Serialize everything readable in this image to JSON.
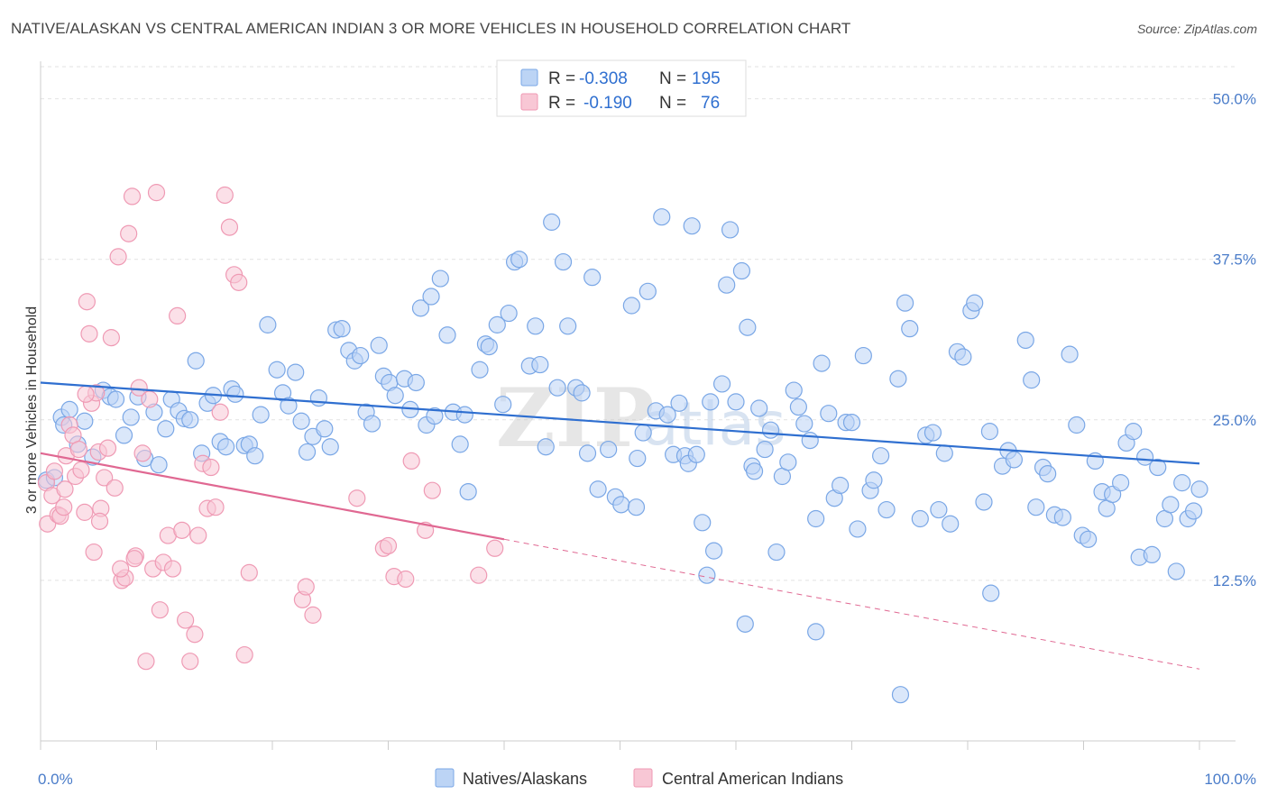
{
  "title": "NATIVE/ALASKAN VS CENTRAL AMERICAN INDIAN 3 OR MORE VEHICLES IN HOUSEHOLD CORRELATION CHART",
  "source": "Source: ZipAtlas.com",
  "watermark": {
    "zip": "ZIP",
    "atlas": "atlas"
  },
  "legend": {
    "rows": [
      {
        "r_label": "R =",
        "r_value": "-0.308",
        "n_label": "N =",
        "n_value": "195",
        "color": "#7aa7e6",
        "fill": "#bcd4f5"
      },
      {
        "r_label": "R =",
        "r_value": "-0.190",
        "n_label": "N =",
        "n_value": "76",
        "color": "#ef9ab4",
        "fill": "#f8c7d5"
      }
    ]
  },
  "bottom_legend": [
    {
      "label": "Natives/Alaskans",
      "color": "#7aa7e6",
      "fill": "#bcd4f5"
    },
    {
      "label": "Central American Indians",
      "color": "#ef9ab4",
      "fill": "#f8c7d5"
    }
  ],
  "chart_data": {
    "type": "scatter",
    "xlabel": "",
    "ylabel": "3 or more Vehicles in Household",
    "xlim": [
      0,
      100
    ],
    "ylim": [
      0,
      52.5
    ],
    "x_tick_labels": [
      "0.0%",
      "100.0%"
    ],
    "y_ticks": [
      12.5,
      25.0,
      37.5,
      50.0
    ],
    "y_tick_labels": [
      "12.5%",
      "25.0%",
      "37.5%",
      "50.0%"
    ],
    "grid": true,
    "legend_position": "top-center",
    "series": [
      {
        "name": "Natives/Alaskans",
        "color": "#7aa7e6",
        "fill": "#bcd4f5",
        "trend": {
          "x": [
            0,
            100
          ],
          "y": [
            27.9,
            21.6
          ],
          "dash": false
        },
        "points": [
          [
            0.5,
            20.3
          ],
          [
            1.2,
            20.5
          ],
          [
            1.8,
            25.2
          ],
          [
            2.0,
            24.6
          ],
          [
            2.5,
            25.8
          ],
          [
            3.2,
            23.1
          ],
          [
            3.8,
            24.9
          ],
          [
            4.5,
            22.1
          ],
          [
            5.4,
            27.3
          ],
          [
            6.0,
            26.8
          ],
          [
            6.5,
            26.6
          ],
          [
            7.2,
            23.8
          ],
          [
            7.8,
            25.2
          ],
          [
            8.4,
            26.8
          ],
          [
            9.0,
            22.0
          ],
          [
            9.8,
            25.6
          ],
          [
            10.2,
            21.5
          ],
          [
            10.8,
            24.3
          ],
          [
            11.3,
            26.6
          ],
          [
            11.9,
            25.7
          ],
          [
            12.4,
            25.1
          ],
          [
            12.9,
            25.0
          ],
          [
            13.4,
            29.6
          ],
          [
            13.9,
            22.4
          ],
          [
            14.4,
            26.3
          ],
          [
            14.9,
            26.9
          ],
          [
            15.5,
            23.3
          ],
          [
            16.0,
            22.9
          ],
          [
            16.5,
            27.4
          ],
          [
            16.8,
            27.0
          ],
          [
            17.6,
            23.0
          ],
          [
            18.0,
            23.1
          ],
          [
            18.5,
            22.2
          ],
          [
            19.0,
            25.4
          ],
          [
            19.6,
            32.4
          ],
          [
            20.4,
            28.9
          ],
          [
            20.9,
            27.1
          ],
          [
            21.4,
            26.1
          ],
          [
            22.0,
            28.7
          ],
          [
            22.5,
            24.9
          ],
          [
            23.0,
            22.5
          ],
          [
            23.5,
            23.7
          ],
          [
            24.0,
            26.7
          ],
          [
            24.5,
            24.3
          ],
          [
            25.0,
            22.9
          ],
          [
            25.5,
            32.0
          ],
          [
            26.0,
            32.1
          ],
          [
            26.6,
            30.4
          ],
          [
            27.1,
            29.6
          ],
          [
            27.6,
            30.0
          ],
          [
            28.1,
            25.6
          ],
          [
            28.6,
            24.7
          ],
          [
            29.2,
            30.8
          ],
          [
            29.6,
            28.4
          ],
          [
            30.1,
            27.9
          ],
          [
            30.6,
            26.9
          ],
          [
            31.4,
            28.2
          ],
          [
            31.9,
            25.8
          ],
          [
            32.4,
            27.9
          ],
          [
            32.8,
            33.7
          ],
          [
            33.3,
            24.6
          ],
          [
            33.7,
            34.6
          ],
          [
            34.0,
            25.3
          ],
          [
            34.5,
            36.0
          ],
          [
            35.1,
            31.6
          ],
          [
            35.6,
            25.6
          ],
          [
            36.2,
            23.1
          ],
          [
            36.6,
            25.4
          ],
          [
            36.9,
            19.4
          ],
          [
            37.9,
            28.9
          ],
          [
            38.4,
            30.9
          ],
          [
            38.7,
            30.7
          ],
          [
            39.4,
            32.4
          ],
          [
            39.9,
            26.2
          ],
          [
            40.4,
            33.3
          ],
          [
            40.9,
            37.3
          ],
          [
            41.3,
            37.5
          ],
          [
            42.2,
            29.2
          ],
          [
            42.7,
            32.3
          ],
          [
            43.1,
            29.3
          ],
          [
            43.6,
            22.9
          ],
          [
            44.1,
            40.4
          ],
          [
            44.6,
            27.5
          ],
          [
            45.1,
            37.3
          ],
          [
            45.5,
            32.3
          ],
          [
            46.2,
            27.5
          ],
          [
            46.7,
            27.1
          ],
          [
            47.2,
            22.4
          ],
          [
            47.6,
            36.1
          ],
          [
            48.1,
            19.6
          ],
          [
            49.0,
            22.7
          ],
          [
            49.6,
            19.0
          ],
          [
            50.1,
            18.4
          ],
          [
            51.0,
            33.9
          ],
          [
            51.4,
            18.2
          ],
          [
            52.0,
            24.0
          ],
          [
            52.4,
            35.0
          ],
          [
            53.1,
            25.7
          ],
          [
            53.6,
            40.8
          ],
          [
            54.1,
            25.4
          ],
          [
            54.6,
            22.3
          ],
          [
            55.1,
            26.3
          ],
          [
            55.6,
            22.2
          ],
          [
            55.9,
            21.6
          ],
          [
            56.2,
            40.1
          ],
          [
            56.6,
            22.3
          ],
          [
            57.1,
            17.0
          ],
          [
            57.5,
            12.9
          ],
          [
            57.8,
            26.4
          ],
          [
            58.1,
            14.8
          ],
          [
            58.8,
            27.8
          ],
          [
            59.5,
            39.8
          ],
          [
            60.0,
            26.4
          ],
          [
            60.5,
            36.6
          ],
          [
            61.0,
            32.2
          ],
          [
            61.4,
            21.4
          ],
          [
            61.6,
            21.0
          ],
          [
            62.0,
            25.9
          ],
          [
            62.5,
            22.7
          ],
          [
            63.0,
            24.2
          ],
          [
            63.5,
            14.7
          ],
          [
            64.0,
            20.6
          ],
          [
            64.5,
            21.7
          ],
          [
            65.0,
            27.3
          ],
          [
            65.4,
            26.0
          ],
          [
            65.9,
            24.7
          ],
          [
            66.4,
            23.4
          ],
          [
            66.9,
            17.3
          ],
          [
            67.4,
            29.4
          ],
          [
            68.0,
            25.5
          ],
          [
            68.5,
            18.9
          ],
          [
            69.0,
            19.9
          ],
          [
            69.5,
            24.8
          ],
          [
            70.0,
            24.8
          ],
          [
            70.5,
            16.5
          ],
          [
            71.0,
            30.0
          ],
          [
            71.6,
            19.5
          ],
          [
            71.9,
            20.3
          ],
          [
            72.5,
            22.2
          ],
          [
            73.0,
            18.0
          ],
          [
            74.0,
            28.2
          ],
          [
            74.6,
            34.1
          ],
          [
            75.0,
            32.1
          ],
          [
            75.9,
            17.3
          ],
          [
            76.4,
            23.8
          ],
          [
            77.0,
            24.0
          ],
          [
            77.5,
            18.0
          ],
          [
            78.0,
            22.4
          ],
          [
            78.5,
            16.9
          ],
          [
            79.1,
            30.3
          ],
          [
            79.6,
            29.9
          ],
          [
            80.3,
            33.5
          ],
          [
            80.6,
            34.1
          ],
          [
            81.4,
            18.6
          ],
          [
            81.9,
            24.1
          ],
          [
            82.0,
            11.5
          ],
          [
            83.0,
            21.4
          ],
          [
            83.5,
            22.6
          ],
          [
            84.0,
            21.9
          ],
          [
            85.0,
            31.2
          ],
          [
            85.5,
            28.1
          ],
          [
            85.9,
            18.2
          ],
          [
            86.5,
            21.3
          ],
          [
            86.9,
            20.8
          ],
          [
            87.5,
            17.6
          ],
          [
            88.2,
            17.4
          ],
          [
            88.8,
            30.1
          ],
          [
            89.4,
            24.6
          ],
          [
            89.9,
            16.0
          ],
          [
            90.4,
            15.7
          ],
          [
            91.0,
            21.8
          ],
          [
            91.6,
            19.4
          ],
          [
            92.0,
            18.1
          ],
          [
            92.5,
            19.2
          ],
          [
            93.2,
            20.1
          ],
          [
            93.7,
            23.2
          ],
          [
            94.3,
            24.1
          ],
          [
            94.8,
            14.3
          ],
          [
            95.3,
            22.1
          ],
          [
            95.9,
            14.5
          ],
          [
            96.4,
            21.3
          ],
          [
            97.0,
            17.3
          ],
          [
            97.5,
            18.4
          ],
          [
            98.0,
            13.2
          ],
          [
            98.5,
            20.1
          ],
          [
            99.0,
            17.3
          ],
          [
            99.5,
            17.9
          ],
          [
            100.0,
            19.6
          ],
          [
            59.2,
            35.5
          ],
          [
            51.5,
            22.0
          ],
          [
            66.9,
            8.5
          ],
          [
            74.2,
            3.6
          ],
          [
            60.8,
            9.1
          ]
        ]
      },
      {
        "name": "Central American Indians",
        "color": "#ef9ab4",
        "fill": "#f8c7d5",
        "trend": {
          "x": [
            0,
            40
          ],
          "y": [
            22.4,
            15.7
          ],
          "dash": false
        },
        "trend_extension": {
          "x": [
            40,
            100
          ],
          "y": [
            15.7,
            5.6
          ],
          "dash": true
        },
        "points": [
          [
            0.5,
            20.1
          ],
          [
            0.6,
            16.9
          ],
          [
            1.0,
            19.1
          ],
          [
            1.2,
            21.0
          ],
          [
            1.5,
            17.6
          ],
          [
            1.7,
            17.5
          ],
          [
            2.0,
            18.2
          ],
          [
            2.2,
            22.2
          ],
          [
            2.5,
            24.6
          ],
          [
            2.8,
            23.8
          ],
          [
            3.0,
            20.6
          ],
          [
            3.3,
            22.7
          ],
          [
            3.5,
            21.1
          ],
          [
            3.8,
            17.8
          ],
          [
            4.0,
            34.2
          ],
          [
            4.2,
            31.7
          ],
          [
            4.4,
            26.3
          ],
          [
            4.6,
            14.7
          ],
          [
            4.8,
            27.1
          ],
          [
            5.0,
            22.5
          ],
          [
            5.2,
            18.1
          ],
          [
            5.5,
            20.5
          ],
          [
            5.8,
            22.8
          ],
          [
            6.1,
            31.4
          ],
          [
            6.4,
            19.7
          ],
          [
            6.7,
            37.7
          ],
          [
            7.0,
            12.5
          ],
          [
            7.3,
            12.7
          ],
          [
            7.6,
            39.5
          ],
          [
            7.9,
            42.4
          ],
          [
            8.2,
            14.4
          ],
          [
            8.5,
            27.5
          ],
          [
            8.8,
            22.4
          ],
          [
            9.1,
            6.2
          ],
          [
            9.4,
            26.6
          ],
          [
            9.7,
            13.4
          ],
          [
            10.0,
            42.7
          ],
          [
            10.3,
            10.2
          ],
          [
            10.6,
            13.9
          ],
          [
            11.0,
            16.0
          ],
          [
            11.4,
            13.4
          ],
          [
            11.8,
            33.1
          ],
          [
            12.2,
            16.4
          ],
          [
            12.5,
            9.4
          ],
          [
            12.9,
            6.2
          ],
          [
            13.3,
            8.3
          ],
          [
            13.6,
            16.0
          ],
          [
            14.0,
            21.6
          ],
          [
            14.4,
            18.1
          ],
          [
            14.7,
            21.3
          ],
          [
            15.1,
            18.2
          ],
          [
            15.5,
            25.6
          ],
          [
            15.9,
            42.5
          ],
          [
            16.3,
            40.0
          ],
          [
            16.7,
            36.3
          ],
          [
            17.1,
            35.7
          ],
          [
            17.6,
            6.7
          ],
          [
            18.0,
            13.1
          ],
          [
            22.6,
            11.0
          ],
          [
            22.9,
            12.0
          ],
          [
            23.5,
            9.8
          ],
          [
            27.3,
            18.9
          ],
          [
            29.6,
            15.0
          ],
          [
            30.0,
            15.2
          ],
          [
            30.5,
            12.8
          ],
          [
            31.5,
            12.6
          ],
          [
            32.0,
            21.8
          ],
          [
            33.2,
            16.4
          ],
          [
            33.8,
            19.5
          ],
          [
            37.8,
            12.9
          ],
          [
            39.2,
            15.0
          ],
          [
            2.1,
            19.6
          ],
          [
            3.9,
            27.0
          ],
          [
            5.1,
            17.1
          ],
          [
            6.9,
            13.4
          ],
          [
            8.1,
            14.2
          ]
        ]
      }
    ]
  }
}
